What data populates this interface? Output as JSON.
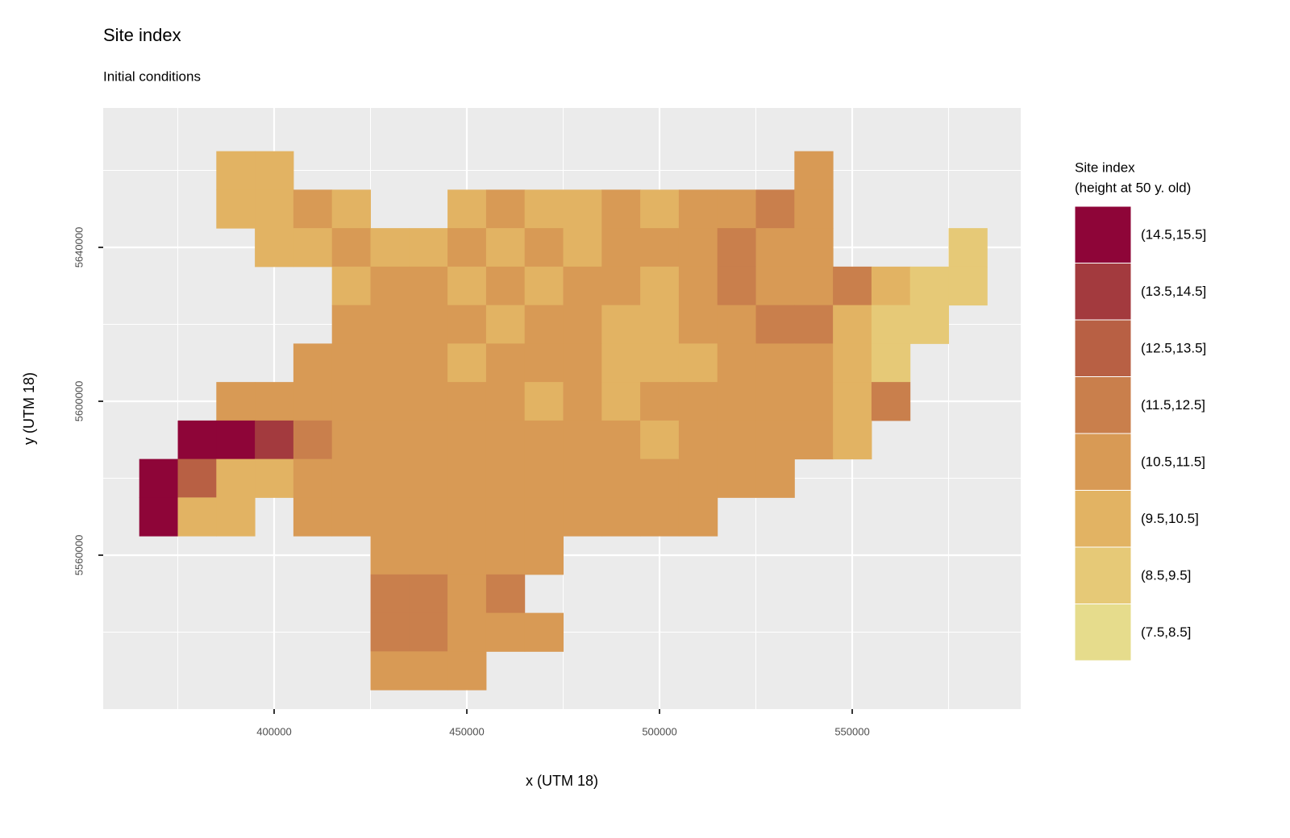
{
  "chart_data": {
    "type": "raster",
    "title": "Site index",
    "subtitle": "Initial conditions",
    "x_label": "x (UTM 18)",
    "y_label": "y (UTM 18)",
    "xlim": [
      355650,
      593720
    ],
    "ylim": [
      5520000,
      5676230
    ],
    "xticks": [
      400000,
      450000,
      500000,
      550000
    ],
    "yticks": [
      5560000,
      5600000,
      5640000
    ],
    "xminor": [
      375000,
      425000,
      475000,
      525000,
      575000
    ],
    "yminor": [
      5540000,
      5580000,
      5620000,
      5660000
    ],
    "grid": true,
    "x": [
      370000,
      380000,
      390000,
      400000,
      410000,
      420000,
      430000,
      440000,
      450000,
      460000,
      470000,
      480000,
      490000,
      500000,
      510000,
      520000,
      530000,
      540000,
      550000,
      560000,
      570000,
      580000
    ],
    "y": [
      5660000,
      5650000,
      5640000,
      5630000,
      5620000,
      5610000,
      5600000,
      5590000,
      5580000,
      5570000,
      5560000,
      5550000,
      5540000,
      5530000
    ],
    "values": [
      [
        null,
        null,
        10,
        10,
        null,
        null,
        null,
        null,
        null,
        null,
        null,
        null,
        null,
        null,
        null,
        null,
        null,
        11,
        null,
        null,
        null,
        null
      ],
      [
        null,
        null,
        10,
        10,
        11,
        10,
        null,
        null,
        10,
        11,
        10,
        10,
        11,
        10,
        11,
        11,
        12,
        11,
        null,
        null,
        null,
        null
      ],
      [
        null,
        null,
        null,
        10,
        10,
        11,
        10,
        10,
        11,
        10,
        11,
        10,
        11,
        11,
        11,
        12,
        11,
        11,
        null,
        null,
        null,
        9
      ],
      [
        null,
        null,
        null,
        null,
        null,
        10,
        11,
        11,
        10,
        11,
        10,
        11,
        11,
        10,
        11,
        12,
        11,
        11,
        12,
        10,
        9,
        9
      ],
      [
        null,
        null,
        null,
        null,
        null,
        11,
        11,
        11,
        11,
        10,
        11,
        11,
        10,
        10,
        11,
        11,
        12,
        12,
        10,
        9,
        9,
        null
      ],
      [
        null,
        null,
        null,
        null,
        11,
        11,
        11,
        11,
        10,
        11,
        11,
        11,
        10,
        10,
        10,
        11,
        11,
        11,
        10,
        9,
        null,
        null
      ],
      [
        null,
        null,
        11,
        11,
        11,
        11,
        11,
        11,
        11,
        11,
        10,
        11,
        10,
        11,
        11,
        11,
        11,
        11,
        10,
        12,
        null,
        null
      ],
      [
        null,
        15,
        15,
        14,
        12,
        11,
        11,
        11,
        11,
        11,
        11,
        11,
        11,
        10,
        11,
        11,
        11,
        11,
        10,
        null,
        null,
        null
      ],
      [
        15,
        13,
        10,
        10,
        11,
        11,
        11,
        11,
        11,
        11,
        11,
        11,
        11,
        11,
        11,
        11,
        11,
        null,
        null,
        null,
        null,
        null
      ],
      [
        15,
        10,
        10,
        null,
        11,
        11,
        11,
        11,
        11,
        11,
        11,
        11,
        11,
        11,
        11,
        null,
        null,
        null,
        null,
        null,
        null,
        null
      ],
      [
        null,
        null,
        null,
        null,
        null,
        null,
        11,
        11,
        11,
        11,
        11,
        null,
        null,
        null,
        null,
        null,
        null,
        null,
        null,
        null,
        null,
        null
      ],
      [
        null,
        null,
        null,
        null,
        null,
        null,
        12,
        12,
        11,
        12,
        null,
        null,
        null,
        null,
        null,
        null,
        null,
        null,
        null,
        null,
        null,
        null
      ],
      [
        null,
        null,
        null,
        null,
        null,
        null,
        12,
        12,
        11,
        11,
        11,
        null,
        null,
        null,
        null,
        null,
        null,
        null,
        null,
        null,
        null,
        null
      ],
      [
        null,
        null,
        null,
        null,
        null,
        null,
        11,
        11,
        11,
        null,
        null,
        null,
        null,
        null,
        null,
        null,
        null,
        null,
        null,
        null,
        null,
        null
      ]
    ],
    "legend": {
      "title": [
        "Site index",
        "(height at 50 y. old)"
      ],
      "breaks": [
        7.5,
        8.5,
        9.5,
        10.5,
        11.5,
        12.5,
        13.5,
        14.5,
        15.5
      ],
      "labels": [
        "(7.5,8.5]",
        "(8.5,9.5]",
        "(9.5,10.5]",
        "(10.5,11.5]",
        "(11.5,12.5]",
        "(12.5,13.5]",
        "(13.5,14.5]",
        "(14.5,15.5]"
      ],
      "colors": [
        "#e6dc8c",
        "#e6c977",
        "#e2b363",
        "#d89a55",
        "#c97f4c",
        "#b86044",
        "#a33a3e",
        "#8e0538"
      ]
    }
  }
}
